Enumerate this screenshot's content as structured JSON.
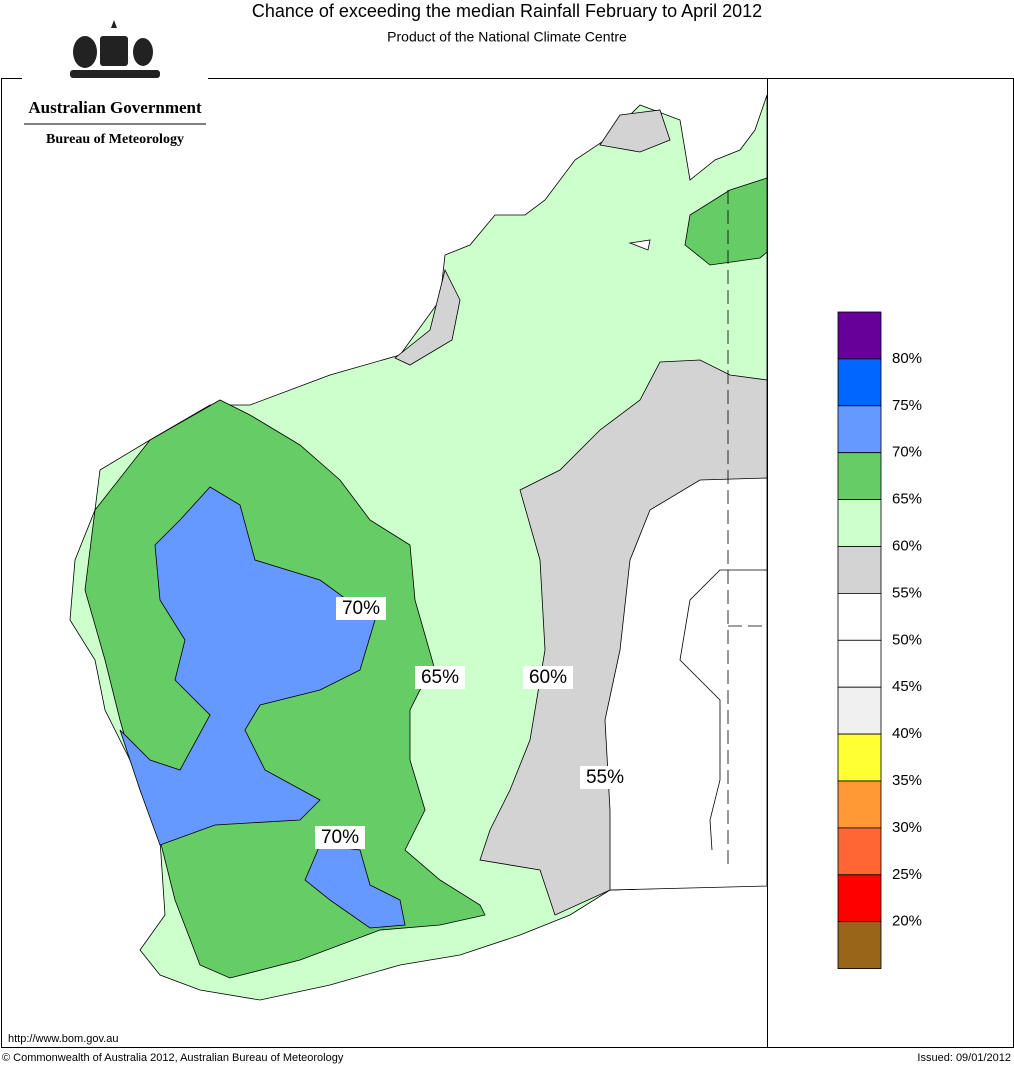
{
  "header": {
    "title": "Chance of exceeding the median Rainfall February to April 2012",
    "subtitle": "Product of the National Climate Centre",
    "logo": {
      "government": "Australian Government",
      "agency": "Bureau of Meteorology"
    }
  },
  "map": {
    "contour_labels": [
      "70%",
      "65%",
      "60%",
      "55%",
      "70%"
    ]
  },
  "legend": {
    "colors": [
      "#660099",
      "#0066ff",
      "#6699ff",
      "#66cc66",
      "#ccffcc",
      "#d3d3d3",
      "#ffffff",
      "#ffffff",
      "#f0f0f0",
      "#ffff33",
      "#ff9933",
      "#ff6633",
      "#ff0000",
      "#996619"
    ],
    "labels": [
      "80%",
      "75%",
      "70%",
      "65%",
      "60%",
      "55%",
      "50%",
      "45%",
      "40%",
      "35%",
      "30%",
      "25%",
      "20%"
    ]
  },
  "footer": {
    "url": "http://www.bom.gov.au",
    "copyright": "© Commonwealth of Australia 2012, Australian Bureau of Meteorology",
    "issued": "Issued: 09/01/2012"
  }
}
